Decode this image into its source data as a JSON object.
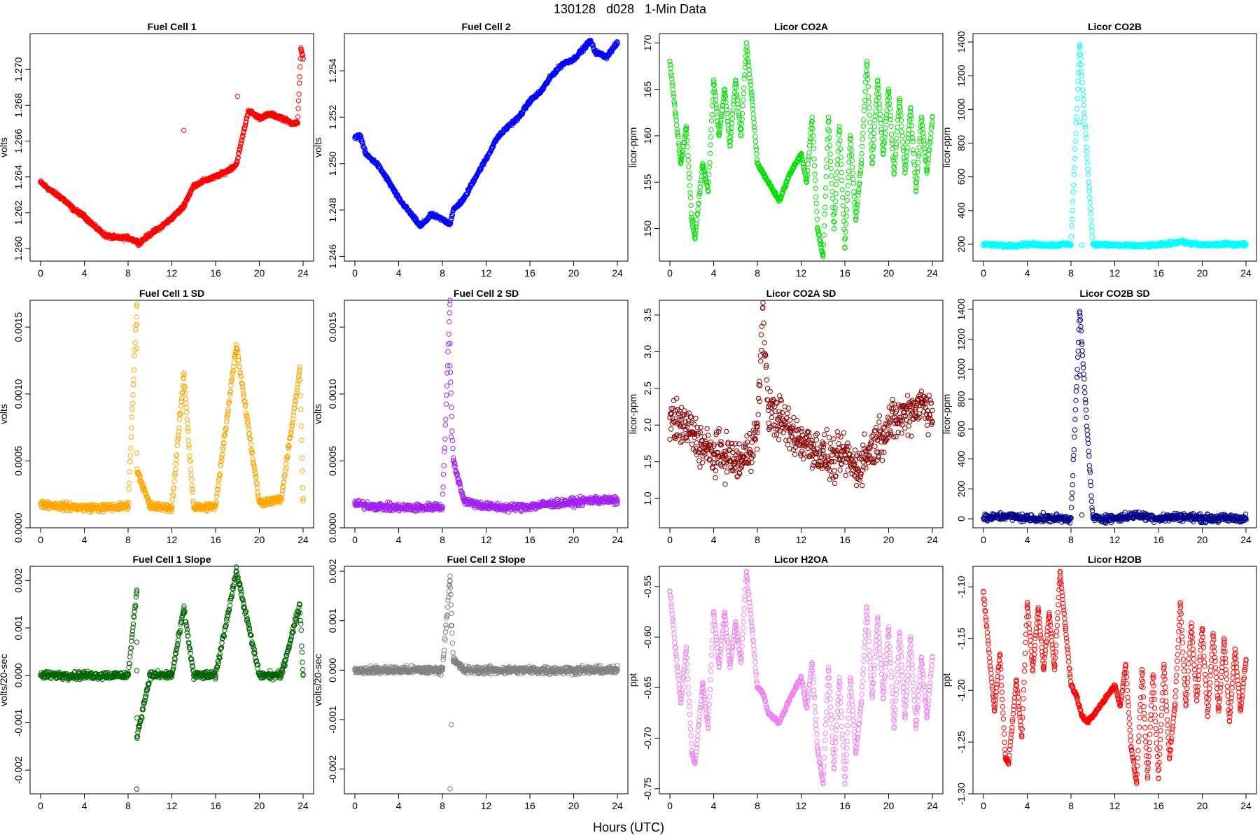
{
  "figure": {
    "title": "130128   d028   1-Min Data",
    "xlabel": "Hours (UTC)"
  },
  "chart_data": [
    {
      "type": "scatter",
      "title": "Fuel Cell 1",
      "ylabel": "volts",
      "color": "#ff0000",
      "xlim": [
        0,
        24
      ],
      "ylim": [
        1.2593,
        1.272
      ],
      "xticks": [
        "0",
        "4",
        "8",
        "12",
        "16",
        "20",
        "24"
      ],
      "yticks": [
        "1.260",
        "1.262",
        "1.264",
        "1.266",
        "1.268",
        "1.270"
      ],
      "series": [
        {
          "name": "Fuel Cell 1",
          "x": [
            0,
            1,
            2,
            3,
            4,
            5,
            6,
            7,
            8,
            8.8,
            9,
            10,
            11,
            12,
            13,
            13.1,
            14,
            15,
            16,
            17,
            17.9,
            18,
            19,
            20,
            21,
            22,
            23,
            23.5,
            23.8,
            24
          ],
          "y": [
            1.2637,
            1.2632,
            1.2628,
            1.2622,
            1.2618,
            1.2612,
            1.2607,
            1.2606,
            1.2606,
            1.2604,
            1.2603,
            1.2608,
            1.2612,
            1.2617,
            1.2623,
            1.2666,
            1.2635,
            1.2638,
            1.264,
            1.2643,
            1.2647,
            1.2685,
            1.2677,
            1.2673,
            1.2675,
            1.2673,
            1.267,
            1.267,
            1.2712,
            1.2706
          ]
        }
      ]
    },
    {
      "type": "scatter",
      "title": "Fuel Cell 2",
      "ylabel": "volts",
      "color": "#0000ff",
      "xlim": [
        0,
        24
      ],
      "ylim": [
        1.2458,
        1.2556
      ],
      "xticks": [
        "0",
        "4",
        "8",
        "12",
        "16",
        "20",
        "24"
      ],
      "yticks": [
        "1.246",
        "1.248",
        "1.250",
        "1.252",
        "1.254"
      ],
      "series": [
        {
          "name": "Fuel Cell 2",
          "x": [
            0,
            0.5,
            1,
            2,
            3,
            4,
            5,
            6,
            7,
            8,
            8.7,
            9,
            10,
            11,
            12,
            13,
            14,
            15,
            16,
            17,
            18,
            19,
            20,
            21,
            21.5,
            22,
            23,
            24
          ],
          "y": [
            1.2511,
            1.2512,
            1.2504,
            1.25,
            1.2493,
            1.2485,
            1.2479,
            1.2473,
            1.2478,
            1.2476,
            1.2474,
            1.248,
            1.2485,
            1.2494,
            1.2502,
            1.2511,
            1.2516,
            1.252,
            1.2527,
            1.2531,
            1.2538,
            1.2543,
            1.2545,
            1.255,
            1.2553,
            1.2548,
            1.2546,
            1.2552
          ]
        }
      ]
    },
    {
      "type": "scatter",
      "title": "Licor CO2A",
      "ylabel": "licor-ppm",
      "color": "#00e000",
      "xlim": [
        0,
        24
      ],
      "ylim": [
        146.5,
        171.0
      ],
      "xticks": [
        "0",
        "4",
        "8",
        "12",
        "16",
        "20",
        "24"
      ],
      "yticks": [
        "150",
        "155",
        "160",
        "165",
        "170"
      ],
      "series": [
        {
          "name": "Licor CO2A",
          "x": [
            0,
            1,
            1.5,
            2,
            2.3,
            3,
            3.5,
            4,
            4.5,
            5,
            5.5,
            6,
            6.5,
            7,
            7.5,
            8,
            8.5,
            9,
            9.5,
            10,
            11,
            12,
            12.5,
            13,
            13.5,
            14,
            14.5,
            15,
            15.5,
            16,
            16.5,
            17,
            17.5,
            18,
            18.5,
            19,
            19.5,
            20,
            20.5,
            21,
            21.5,
            22,
            22.5,
            23,
            23.5,
            24
          ],
          "y": [
            168,
            157,
            161,
            151,
            149,
            157,
            154,
            166,
            160,
            165,
            159,
            166,
            160,
            170,
            164,
            157,
            156,
            155,
            154,
            153,
            156,
            158,
            155,
            162,
            150,
            147,
            162,
            150,
            161,
            148,
            160,
            151,
            157,
            168,
            157,
            166,
            158,
            165,
            156,
            164,
            156,
            163,
            154,
            162,
            156,
            162
          ]
        }
      ]
    },
    {
      "type": "scatter",
      "title": "Licor CO2B",
      "ylabel": "licor-ppm",
      "color": "#00ffff",
      "xlim": [
        0,
        24
      ],
      "ylim": [
        100,
        1450
      ],
      "xticks": [
        "0",
        "4",
        "8",
        "12",
        "16",
        "20",
        "24"
      ],
      "yticks": [
        "200",
        "400",
        "600",
        "800",
        "1000",
        "1200",
        "1400"
      ],
      "series": [
        {
          "name": "Licor CO2B",
          "x": [
            0,
            2,
            4,
            6,
            8,
            8.8,
            8.8,
            9,
            10,
            12,
            14,
            16,
            18,
            20,
            22,
            24
          ],
          "y": [
            200,
            190,
            200,
            195,
            200,
            1385,
            925,
            195,
            200,
            195,
            190,
            195,
            215,
            195,
            200,
            200
          ]
        }
      ]
    },
    {
      "type": "scatter",
      "title": "Fuel Cell 1 SD",
      "ylabel": "volts",
      "color": "#ffa500",
      "xlim": [
        0,
        24
      ],
      "ylim": [
        0,
        0.0017
      ],
      "xticks": [
        "0",
        "4",
        "8",
        "12",
        "16",
        "20",
        "24"
      ],
      "yticks": [
        "0.0000",
        "0.0005",
        "0.0010",
        "0.0015"
      ],
      "series": [
        {
          "name": "Fuel Cell 1 SD",
          "x": [
            0,
            2,
            4,
            6,
            8,
            8.8,
            8.8,
            8.8,
            8.8,
            8.8,
            10,
            12,
            13.1,
            14,
            16,
            17.9,
            20,
            22,
            23.7,
            24
          ],
          "y": [
            0.00018,
            0.00016,
            0.00015,
            0.00015,
            0.00016,
            0.00167,
            0.00152,
            0.00134,
            0.00056,
            0.00044,
            0.00016,
            0.00015,
            0.00114,
            0.00015,
            0.00016,
            0.00137,
            0.00019,
            0.00021,
            0.00118,
            0.0002
          ]
        }
      ]
    },
    {
      "type": "scatter",
      "title": "Fuel Cell 2 SD",
      "ylabel": "volts",
      "color": "#a020f0",
      "xlim": [
        0,
        24
      ],
      "ylim": [
        0,
        0.0017
      ],
      "xticks": [
        "0",
        "4",
        "8",
        "12",
        "16",
        "20",
        "24"
      ],
      "yticks": [
        "0.0000",
        "0.0005",
        "0.0010",
        "0.0015"
      ],
      "series": [
        {
          "name": "Fuel Cell 2 SD",
          "x": [
            0,
            2,
            4,
            6,
            8,
            8.7,
            8.7,
            8.7,
            8.8,
            9,
            10,
            12,
            14,
            16,
            18,
            20,
            22,
            24
          ],
          "y": [
            0.00018,
            0.00016,
            0.00015,
            0.00015,
            0.00016,
            0.0017,
            0.00138,
            0.00121,
            0.00068,
            0.0005,
            0.0002,
            0.00016,
            0.00015,
            0.00016,
            0.00018,
            0.00019,
            0.00021,
            0.0002
          ]
        }
      ]
    },
    {
      "type": "scatter",
      "title": "Licor CO2A SD",
      "ylabel": "licor-ppm",
      "color": "#8b0000",
      "xlim": [
        0,
        24
      ],
      "ylim": [
        0.6,
        3.7
      ],
      "xticks": [
        "0",
        "4",
        "8",
        "12",
        "16",
        "20",
        "24"
      ],
      "yticks": [
        "1.0",
        "1.5",
        "2.0",
        "2.5",
        "3.0",
        "3.5"
      ],
      "series": [
        {
          "name": "Licor CO2A SD",
          "x": [
            0,
            1,
            2,
            3,
            4,
            5,
            6,
            6.5,
            7,
            8,
            8.5,
            9,
            10,
            11,
            12,
            13,
            14,
            15,
            16,
            17,
            18,
            19,
            20,
            21,
            22,
            23,
            24
          ],
          "y": [
            2.1,
            2.0,
            1.9,
            1.7,
            1.6,
            1.6,
            1.5,
            1.5,
            1.6,
            1.9,
            3.6,
            2.2,
            2.1,
            1.9,
            1.8,
            1.7,
            1.6,
            1.5,
            1.6,
            1.4,
            1.6,
            1.8,
            2.0,
            2.1,
            2.2,
            2.3,
            2.2
          ]
        }
      ]
    },
    {
      "type": "scatter",
      "title": "Licor CO2B SD",
      "ylabel": "licor-ppm",
      "color": "#00008b",
      "xlim": [
        0,
        24
      ],
      "ylim": [
        -60,
        1460
      ],
      "xticks": [
        "0",
        "4",
        "8",
        "12",
        "16",
        "20",
        "24"
      ],
      "yticks": [
        "0",
        "200",
        "400",
        "600",
        "800",
        "1000",
        "1200",
        "1400"
      ],
      "series": [
        {
          "name": "Licor CO2B SD",
          "x": [
            0,
            2,
            4,
            6,
            8,
            8.8,
            8.8,
            9,
            10,
            12,
            14,
            16,
            18,
            20,
            22,
            24
          ],
          "y": [
            3,
            20,
            3,
            4,
            3,
            1385,
            960,
            25,
            4,
            3,
            25,
            3,
            15,
            3,
            4,
            3
          ]
        }
      ]
    },
    {
      "type": "scatter",
      "title": "Fuel Cell 1 Slope",
      "ylabel": "volts/20-sec",
      "color": "#006400",
      "xlim": [
        0,
        24
      ],
      "ylim": [
        -0.0025,
        0.0023
      ],
      "xticks": [
        "0",
        "4",
        "8",
        "12",
        "16",
        "20",
        "24"
      ],
      "yticks": [
        "-0.002",
        "-0.001",
        "0.000",
        "0.001",
        "0.002"
      ],
      "series": [
        {
          "name": "Fuel Cell 1 Slope",
          "x": [
            0,
            2,
            4,
            6,
            8,
            8.8,
            8.8,
            8.8,
            8.8,
            8.8,
            8.8,
            10,
            12,
            13.1,
            14,
            16,
            17.9,
            20,
            22,
            23.7,
            24
          ],
          "y": [
            0,
            0,
            0,
            0,
            0,
            0.0018,
            0.0007,
            -0.0009,
            -0.0013,
            -0.0024,
            0.0001,
            0,
            0,
            0.0014,
            0,
            0,
            0.0022,
            0,
            0,
            0.0015,
            0
          ]
        }
      ]
    },
    {
      "type": "scatter",
      "title": "Fuel Cell 2 Slope",
      "ylabel": "volts/20-sec",
      "color": "#808080",
      "xlim": [
        0,
        24
      ],
      "ylim": [
        -0.0025,
        0.0021
      ],
      "xticks": [
        "0",
        "4",
        "8",
        "12",
        "16",
        "20",
        "24"
      ],
      "yticks": [
        "-0.002",
        "-0.001",
        "0.000",
        "0.001",
        "0.002"
      ],
      "series": [
        {
          "name": "Fuel Cell 2 Slope",
          "x": [
            0,
            2,
            4,
            6,
            8,
            8.7,
            8.7,
            8.8,
            8.8,
            8.7,
            9,
            10,
            12,
            14,
            16,
            18,
            20,
            22,
            24
          ],
          "y": [
            0,
            0,
            0,
            0,
            0,
            0.0019,
            0.0018,
            0.0009,
            -0.0011,
            -0.0024,
            0.0002,
            0,
            0,
            0,
            0,
            0,
            0,
            0,
            0
          ]
        }
      ]
    },
    {
      "type": "scatter",
      "title": "Licor H2OA",
      "ylabel": "ppt",
      "color": "#ee82ee",
      "xlim": [
        0,
        24
      ],
      "ylim": [
        -0.755,
        -0.53
      ],
      "xticks": [
        "0",
        "4",
        "8",
        "12",
        "16",
        "20",
        "24"
      ],
      "yticks": [
        "-0.75",
        "-0.70",
        "-0.65",
        "-0.60",
        "-0.55"
      ],
      "series": [
        {
          "name": "Licor H2OA",
          "x": [
            0,
            1,
            1.5,
            2,
            2.3,
            3,
            3.5,
            4,
            4.5,
            5,
            5.5,
            6,
            6.5,
            7,
            7.5,
            8,
            8.5,
            9,
            9.5,
            10,
            11,
            12,
            12.5,
            13,
            13.5,
            14,
            14.5,
            15,
            15.5,
            16,
            16.5,
            17,
            17.5,
            18,
            18.5,
            19,
            19.5,
            20,
            20.5,
            21,
            21.5,
            22,
            22.5,
            23,
            23.5,
            24
          ],
          "y": [
            -0.555,
            -0.665,
            -0.61,
            -0.715,
            -0.725,
            -0.645,
            -0.69,
            -0.575,
            -0.63,
            -0.575,
            -0.63,
            -0.585,
            -0.625,
            -0.535,
            -0.59,
            -0.65,
            -0.655,
            -0.675,
            -0.68,
            -0.685,
            -0.66,
            -0.64,
            -0.67,
            -0.625,
            -0.71,
            -0.745,
            -0.63,
            -0.73,
            -0.64,
            -0.745,
            -0.64,
            -0.715,
            -0.665,
            -0.57,
            -0.66,
            -0.58,
            -0.66,
            -0.59,
            -0.69,
            -0.595,
            -0.68,
            -0.6,
            -0.69,
            -0.62,
            -0.68,
            -0.62
          ]
        }
      ]
    },
    {
      "type": "scatter",
      "title": "Licor H2OB",
      "ylabel": "ppt",
      "color": "#ff0000",
      "xlim": [
        0,
        24
      ],
      "ylim": [
        -1.3,
        -1.08
      ],
      "xticks": [
        "0",
        "4",
        "8",
        "12",
        "16",
        "20",
        "24"
      ],
      "yticks": [
        "-1.30",
        "-1.25",
        "-1.20",
        "-1.15",
        "-1.10"
      ],
      "series": [
        {
          "name": "Licor H2OB",
          "x": [
            0,
            1,
            1.5,
            2,
            2.3,
            3,
            3.5,
            4,
            4.5,
            5,
            5.5,
            6,
            6.5,
            7,
            7.5,
            8,
            8.5,
            9,
            9.5,
            10,
            11,
            12,
            12.5,
            13,
            13.5,
            14,
            14.5,
            15,
            15.5,
            16,
            16.5,
            17,
            17.5,
            18,
            18.5,
            19,
            19.5,
            20,
            20.5,
            21,
            21.5,
            22,
            22.5,
            23,
            23.5,
            24
          ],
          "y": [
            -1.105,
            -1.22,
            -1.165,
            -1.265,
            -1.27,
            -1.19,
            -1.245,
            -1.115,
            -1.18,
            -1.12,
            -1.18,
            -1.125,
            -1.18,
            -1.085,
            -1.14,
            -1.195,
            -1.205,
            -1.225,
            -1.23,
            -1.225,
            -1.21,
            -1.195,
            -1.215,
            -1.175,
            -1.255,
            -1.29,
            -1.18,
            -1.285,
            -1.185,
            -1.285,
            -1.175,
            -1.265,
            -1.215,
            -1.115,
            -1.215,
            -1.135,
            -1.21,
            -1.14,
            -1.225,
            -1.145,
            -1.22,
            -1.15,
            -1.23,
            -1.16,
            -1.22,
            -1.17
          ]
        }
      ]
    }
  ]
}
